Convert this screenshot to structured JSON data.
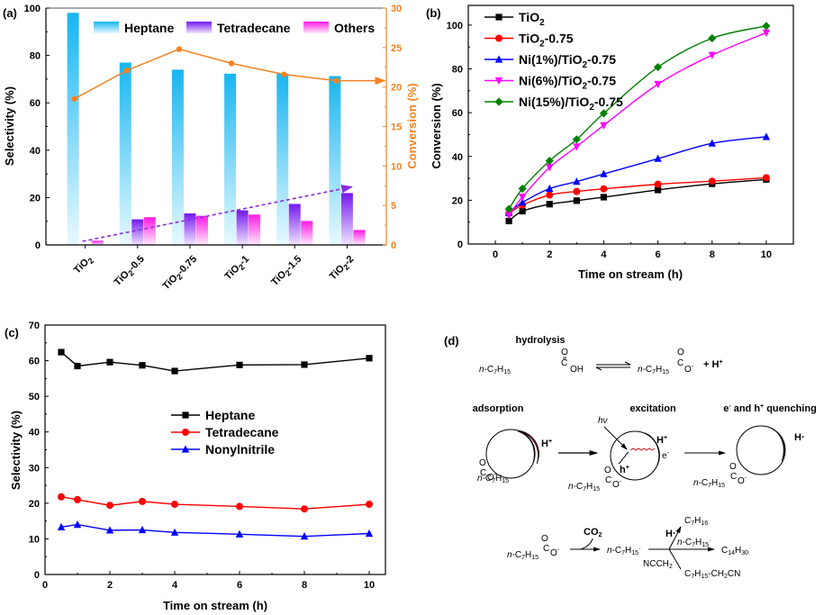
{
  "chart_data": [
    {
      "panel": "(a)",
      "type": "bar",
      "categories": [
        "TiO2",
        "TiO2-0.5",
        "TiO2-0.75",
        "TiO2-1",
        "TiO2-1.5",
        "TiO2-2"
      ],
      "category_labels": [
        {
          "base": "TiO",
          "sub": "2",
          "suffix": ""
        },
        {
          "base": "TiO",
          "sub": "2",
          "suffix": "-0.5"
        },
        {
          "base": "TiO",
          "sub": "2",
          "suffix": "-0.75"
        },
        {
          "base": "TiO",
          "sub": "2",
          "suffix": "-1"
        },
        {
          "base": "TiO",
          "sub": "2",
          "suffix": "-1.5"
        },
        {
          "base": "TiO",
          "sub": "2",
          "suffix": "-2"
        }
      ],
      "series": [
        {
          "name": "Heptane",
          "axis": "left",
          "kind": "bar",
          "color_top": "#1EB8F0",
          "color_bottom": "#E6F8FF",
          "values": [
            98,
            77,
            74,
            72.3,
            72.3,
            71.3
          ]
        },
        {
          "name": "Tetradecane",
          "axis": "left",
          "kind": "bar",
          "color_top": "#7A1EF0",
          "color_bottom": "#EEE0FF",
          "values": [
            0,
            10.8,
            13.3,
            14.6,
            17.3,
            21.9
          ]
        },
        {
          "name": "Others",
          "axis": "left",
          "kind": "bar",
          "color_top": "#FF1EE6",
          "color_bottom": "#FFE8FC",
          "values": [
            1.8,
            11.7,
            12.3,
            12.8,
            10.1,
            6.3
          ]
        },
        {
          "name": "Conversion",
          "axis": "right",
          "kind": "line",
          "color": "#F58220",
          "values": [
            18.5,
            22.1,
            24.8,
            23.0,
            21.6,
            20.8
          ]
        }
      ],
      "trend_arrow": {
        "color": "#8A2BE2",
        "style": "dashed",
        "from": {
          "category_index": 0,
          "value": 1.5
        },
        "to": {
          "category_index": 5,
          "value": 24.5
        }
      },
      "legend": [
        "Heptane",
        "Tetradecane",
        "Others"
      ],
      "legend_position": "top",
      "ylabel": "Selectivity (%)",
      "ylabel_right": "Conversion (%)",
      "ylim": [
        0,
        100
      ],
      "ylim_right": [
        0,
        30
      ],
      "yticks": [
        0,
        20,
        40,
        60,
        80,
        100
      ],
      "yticks_right": [
        0,
        5,
        10,
        15,
        20,
        25,
        30
      ],
      "right_axis_color": "#F58220"
    },
    {
      "panel": "(b)",
      "type": "line",
      "x": [
        0.5,
        1,
        2,
        3,
        4,
        6,
        8,
        10
      ],
      "series": [
        {
          "name": "TiO2",
          "label_base": "TiO",
          "label_sub": "2",
          "label_suffix": "",
          "color": "#000000",
          "marker": "square",
          "values": [
            10.5,
            15,
            18.2,
            19.8,
            21.4,
            24.7,
            27.5,
            29.5
          ]
        },
        {
          "name": "TiO2-0.75",
          "label_base": "TiO",
          "label_sub": "2",
          "label_suffix": "-0.75",
          "color": "#FF0000",
          "marker": "circle",
          "values": [
            14,
            17.8,
            22.4,
            24,
            25.2,
            27.3,
            28.7,
            30.3
          ]
        },
        {
          "name": "Ni(1%)/TiO2-0.75",
          "label_base": "Ni(1%)/TiO",
          "label_sub": "2",
          "label_suffix": "-0.75",
          "color": "#0000FF",
          "marker": "triangle-up",
          "values": [
            14.3,
            19,
            25.3,
            28.5,
            32,
            39,
            46,
            49
          ]
        },
        {
          "name": "Ni(6%)/TiO2-0.75",
          "label_base": "Ni(6%)/TiO",
          "label_sub": "2",
          "label_suffix": "-0.75",
          "color": "#FF00FF",
          "marker": "triangle-down",
          "values": [
            13.2,
            21.5,
            35,
            44.5,
            54.2,
            73,
            86.3,
            96.5
          ]
        },
        {
          "name": "Ni(15%)/TiO2-0.75",
          "label_base": "Ni(15%)/TiO",
          "label_sub": "2",
          "label_suffix": "-0.75",
          "color": "#008000",
          "marker": "diamond",
          "values": [
            16,
            25.3,
            38,
            47.8,
            59.7,
            80.8,
            94,
            99.6
          ]
        }
      ],
      "legend_position": "top-left",
      "xlabel": "Time on stream (h)",
      "ylabel": "Conversion (%)",
      "xlim": [
        -1,
        11
      ],
      "ylim": [
        0,
        109
      ],
      "xticks": [
        0,
        2,
        4,
        6,
        8,
        10
      ],
      "yticks": [
        0,
        20,
        40,
        60,
        80,
        100
      ],
      "smooth": true
    },
    {
      "panel": "(c)",
      "type": "line",
      "x": [
        0.5,
        1,
        2,
        3,
        4,
        6,
        8,
        10
      ],
      "series": [
        {
          "name": "Heptane",
          "color": "#000000",
          "marker": "square",
          "values": [
            62.4,
            58.5,
            59.6,
            58.7,
            57.1,
            58.8,
            58.9,
            60.7
          ]
        },
        {
          "name": "Tetradecane",
          "color": "#FF0000",
          "marker": "circle",
          "values": [
            21.8,
            21,
            19.4,
            20.5,
            19.7,
            19.1,
            18.4,
            19.7
          ]
        },
        {
          "name": "Nonylnitrile",
          "color": "#0000FF",
          "marker": "triangle-up",
          "values": [
            13.3,
            14,
            12.4,
            12.5,
            11.8,
            11.3,
            10.7,
            11.5
          ]
        }
      ],
      "legend_position": "center",
      "xlabel": "Time on stream (h)",
      "ylabel": "Selectivity (%)",
      "xlim": [
        0,
        10.5
      ],
      "ylim": [
        0,
        70
      ],
      "xticks": [
        0,
        2,
        4,
        6,
        8,
        10
      ],
      "yticks": [
        0,
        10,
        20,
        30,
        40,
        50,
        60,
        70
      ]
    }
  ],
  "panel_d": {
    "tag": "(d)",
    "hydrolysis_label": "hydrolysis",
    "acid_chain": "n-C7H15",
    "acid_group_oh": "OH",
    "carboxylate_o": "O",
    "proton": "H+",
    "steps": [
      "adsorption",
      "excitation",
      "e- and h+ quenching"
    ],
    "photon_label": "hν",
    "hole_label": "h+",
    "electron_label": "e-",
    "h_radical_label": "H·",
    "co2_label": "CO2",
    "radical_label": "n-C7H15·",
    "branch_h": "H·",
    "branch_radical": "n-C7H15·",
    "branch_nc": "NCCH2·",
    "product_heptane": "C7H16",
    "product_tetradecane": "C14H30",
    "product_nitrile": "C7H15-CH2CN",
    "semiconductor_color": "#E41A1C"
  },
  "panel_tags": [
    "(a)",
    "(b)",
    "(c)",
    "(d)"
  ]
}
